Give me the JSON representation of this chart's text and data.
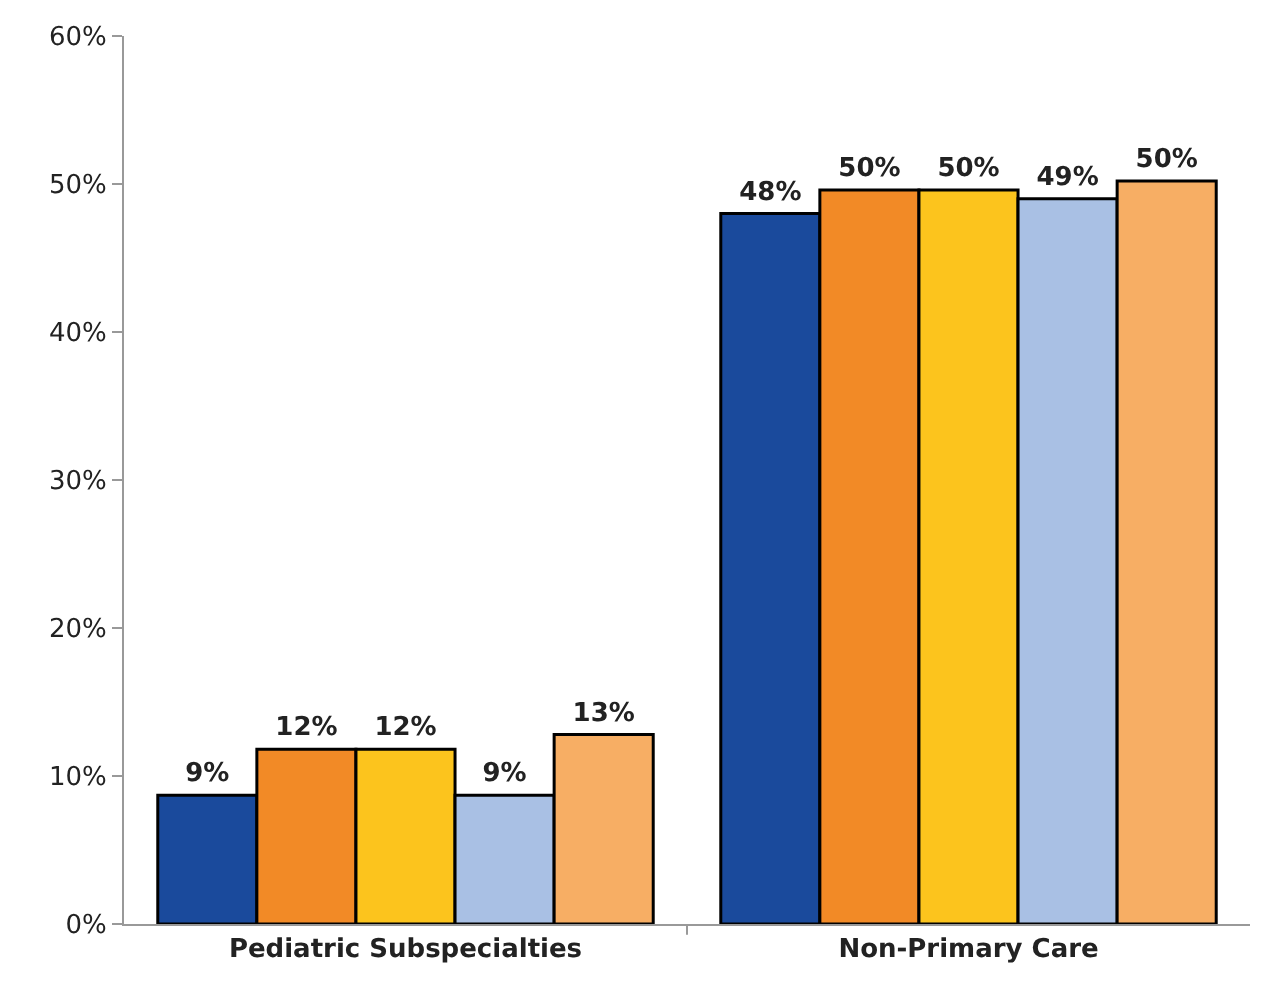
{
  "chart_data": {
    "type": "bar",
    "categories": [
      "Pediatric Subspecialties",
      "Non-Primary Care"
    ],
    "series": [
      {
        "color": "#1a4a9c",
        "values": [
          8.7,
          48
        ],
        "value_labels": [
          "9%",
          "48%"
        ]
      },
      {
        "color": "#f28a26",
        "values": [
          11.8,
          49.6
        ],
        "value_labels": [
          "12%",
          "50%"
        ]
      },
      {
        "color": "#fcc41d",
        "values": [
          11.8,
          49.6
        ],
        "value_labels": [
          "12%",
          "50%"
        ]
      },
      {
        "color": "#a9c0e4",
        "values": [
          8.7,
          49
        ],
        "value_labels": [
          "9%",
          "49%"
        ]
      },
      {
        "color": "#f7ae64",
        "values": [
          12.8,
          50.2
        ],
        "value_labels": [
          "13%",
          "50%"
        ]
      }
    ],
    "ylim": [
      0,
      60
    ],
    "yticks": [
      {
        "value": 0,
        "label": "0%"
      },
      {
        "value": 10,
        "label": "10%"
      },
      {
        "value": 20,
        "label": "20%"
      },
      {
        "value": 30,
        "label": "30%"
      },
      {
        "value": 40,
        "label": "40%"
      },
      {
        "value": 50,
        "label": "50%"
      },
      {
        "value": 60,
        "label": "60%"
      }
    ],
    "grid": false
  }
}
